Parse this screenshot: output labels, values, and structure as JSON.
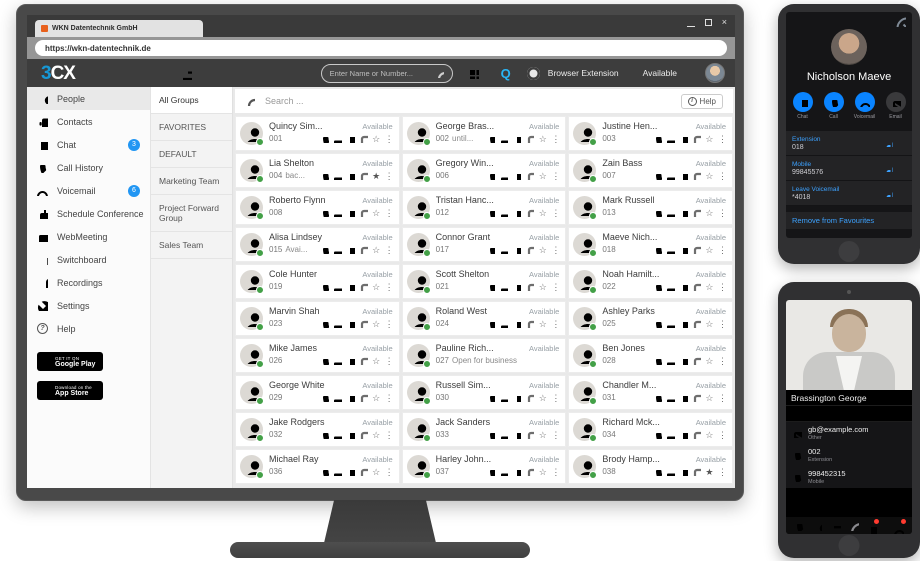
{
  "browser": {
    "tab_title": "WKN Datentechnik GmbH",
    "url": "https://wkn-datentechnik.de"
  },
  "header": {
    "logo_3": "3",
    "logo_cx": "CX",
    "search_placeholder": "Enter Name or Number...",
    "q_label": "Q",
    "extension_label": "Browser Extension",
    "status_label": "Available"
  },
  "sidebar": {
    "items": [
      {
        "label": "People"
      },
      {
        "label": "Contacts"
      },
      {
        "label": "Chat",
        "badge": "3"
      },
      {
        "label": "Call History"
      },
      {
        "label": "Voicemail",
        "badge": "6"
      },
      {
        "label": "Schedule Conference"
      },
      {
        "label": "WebMeeting"
      },
      {
        "label": "Switchboard"
      },
      {
        "label": "Recordings"
      },
      {
        "label": "Settings"
      },
      {
        "label": "Help"
      }
    ],
    "store": {
      "play_top": "GET IT ON",
      "play_bottom": "Google Play",
      "app_top": "Download on the",
      "app_bottom": "App Store"
    }
  },
  "groups": {
    "list": [
      {
        "label": "All Groups",
        "selected": true
      },
      {
        "label": "FAVORITES"
      },
      {
        "label": "DEFAULT"
      },
      {
        "label": "Marketing Team"
      },
      {
        "label": "Project Forward Group"
      },
      {
        "label": "Sales Team"
      }
    ]
  },
  "contacts": {
    "search_placeholder": "Search ...",
    "help_label": "Help",
    "status_label": "Available",
    "list": [
      {
        "name": "Quincy Sim...",
        "ext": "001"
      },
      {
        "name": "Lia Shelton",
        "ext": "004",
        "note": "bac...",
        "fav": true
      },
      {
        "name": "Roberto Flynn",
        "ext": "008"
      },
      {
        "name": "Alisa Lindsey",
        "ext": "015",
        "note": "Avai..."
      },
      {
        "name": "Cole Hunter",
        "ext": "019"
      },
      {
        "name": "Marvin Shah",
        "ext": "023"
      },
      {
        "name": "Mike James",
        "ext": "026"
      },
      {
        "name": "George White",
        "ext": "029"
      },
      {
        "name": "Jake Rodgers",
        "ext": "032"
      },
      {
        "name": "Michael Ray",
        "ext": "036"
      },
      {
        "name": "George Bras...",
        "ext": "002",
        "note": "until..."
      },
      {
        "name": "Gregory Win...",
        "ext": "006"
      },
      {
        "name": "Tristan Hanc...",
        "ext": "012"
      },
      {
        "name": "Connor Grant",
        "ext": "017"
      },
      {
        "name": "Scott Shelton",
        "ext": "021"
      },
      {
        "name": "Roland West",
        "ext": "024"
      },
      {
        "name": "Pauline Rich...",
        "ext": "027",
        "note": "Open for business",
        "no_icons": true
      },
      {
        "name": "Russell Sim...",
        "ext": "030"
      },
      {
        "name": "Jack Sanders",
        "ext": "033"
      },
      {
        "name": "Harley John...",
        "ext": "037"
      },
      {
        "name": "Justine Hen...",
        "ext": "003"
      },
      {
        "name": "Zain Bass",
        "ext": "007"
      },
      {
        "name": "Mark Russell",
        "ext": "013"
      },
      {
        "name": "Maeve Nich...",
        "ext": "018"
      },
      {
        "name": "Noah Hamilt...",
        "ext": "022"
      },
      {
        "name": "Ashley Parks",
        "ext": "025"
      },
      {
        "name": "Ben Jones",
        "ext": "028"
      },
      {
        "name": "Chandler M...",
        "ext": "031"
      },
      {
        "name": "Richard Mck...",
        "ext": "034"
      },
      {
        "name": "Brody Hamp...",
        "ext": "038",
        "fav": true
      }
    ]
  },
  "phone_top": {
    "name": "Nicholson Maeve",
    "actions": [
      {
        "label": "Chat",
        "icon": "chat"
      },
      {
        "label": "Call",
        "icon": "phone"
      },
      {
        "label": "Voicemail",
        "icon": "voicemail"
      },
      {
        "label": "Email",
        "icon": "email",
        "muted": true
      }
    ],
    "fields": [
      {
        "label": "Extension",
        "value": "018"
      },
      {
        "label": "Mobile",
        "value": "99845576"
      },
      {
        "label": "Leave Voicemail",
        "value": "*4018"
      }
    ],
    "remove_label": "Remove from Favourites"
  },
  "phone_bottom": {
    "name": "Brassington George",
    "fields": [
      {
        "icon": "email",
        "value": "gb@example.com",
        "label": "Other"
      },
      {
        "icon": "phone",
        "value": "002",
        "label": "Extension",
        "green": true
      },
      {
        "icon": "phone",
        "value": "998452315",
        "label": "Mobile",
        "green": true
      }
    ]
  }
}
